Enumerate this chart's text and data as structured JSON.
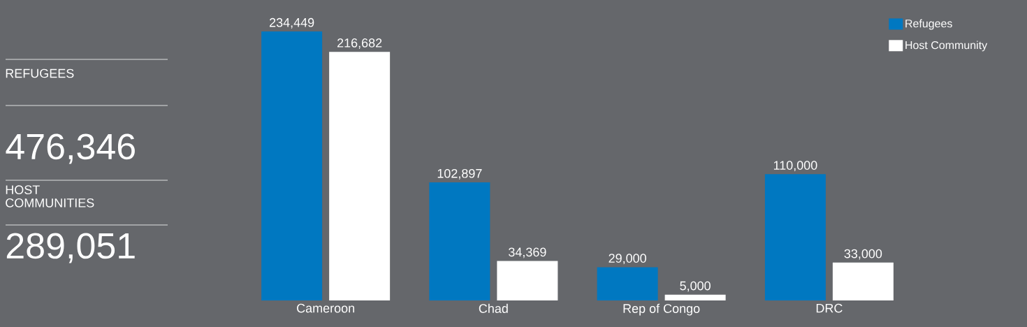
{
  "chart_data": {
    "type": "bar",
    "categories": [
      "Cameroon",
      "Chad",
      "Rep of Congo",
      "DRC"
    ],
    "series": [
      {
        "name": "Refugees",
        "color": "#0078c1",
        "values": [
          234449,
          102897,
          29000,
          110000
        ],
        "value_labels": [
          "234,449",
          "102,897",
          "29,000",
          "110,000"
        ]
      },
      {
        "name": "Host Community",
        "color": "#ffffff",
        "values": [
          216682,
          34369,
          5000,
          33000
        ],
        "value_labels": [
          "216,682",
          "34,369",
          "5,000",
          "33,000"
        ]
      }
    ],
    "legend": "top right",
    "annotations": [
      "REFUGEES",
      "476,346",
      "HOST COMMUNITIES",
      "289,051"
    ]
  }
}
